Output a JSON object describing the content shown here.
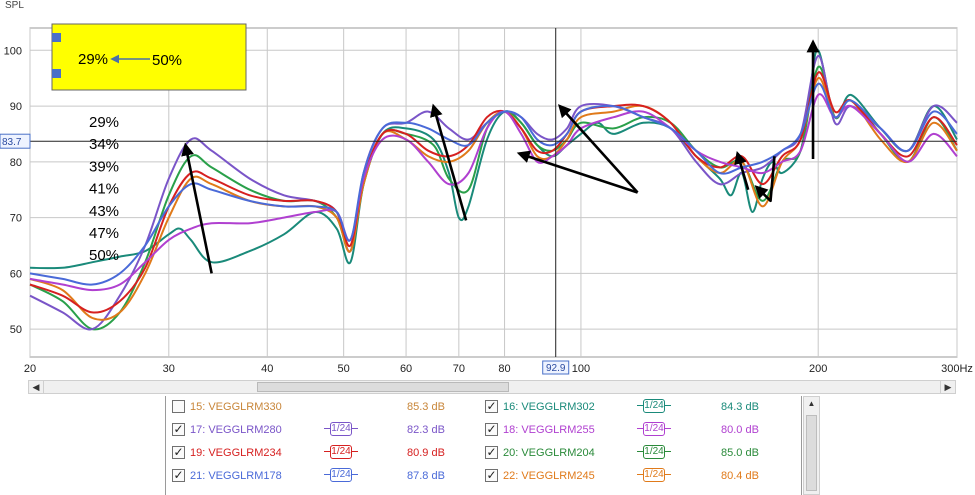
{
  "chart_data": {
    "type": "line",
    "ylabel": "SPL",
    "xaxis": {
      "scale": "log",
      "range": [
        20,
        300
      ],
      "ticks": [
        20,
        30,
        40,
        50,
        60,
        70,
        80,
        100,
        200,
        300
      ],
      "tick_labels": [
        "20",
        "30",
        "40",
        "50",
        "60",
        "70",
        "80",
        "100",
        "200",
        "300Hz"
      ]
    },
    "yaxis": {
      "range": [
        45,
        104
      ],
      "ticks": [
        50,
        60,
        70,
        80,
        90,
        100
      ],
      "tick_labels": [
        "50",
        "60",
        "70",
        "80",
        "90",
        "100"
      ]
    },
    "cursor": {
      "x_label": "92.9",
      "y_label": "83.7",
      "x": 92.9,
      "y": 83.7
    },
    "grid": true,
    "series": [
      {
        "color": "#1a8a7a",
        "x": [
          20,
          22,
          24,
          26,
          28,
          30,
          31,
          32,
          34,
          38,
          42,
          46,
          49,
          51,
          53,
          56,
          60,
          65,
          68,
          70,
          72,
          76,
          80,
          84,
          88,
          92,
          96,
          100,
          105,
          110,
          120,
          130,
          140,
          150,
          155,
          160,
          165,
          170,
          175,
          180,
          190,
          195,
          200,
          210,
          220,
          240,
          260,
          280,
          300
        ],
        "y": [
          61,
          61,
          62,
          63,
          64,
          67,
          68,
          66,
          62,
          64,
          67,
          71,
          68,
          62,
          76,
          85,
          86,
          84,
          78,
          70,
          72,
          84,
          89,
          87,
          83,
          81,
          83,
          85,
          87,
          85,
          87,
          86,
          81,
          77,
          74,
          78,
          71,
          77,
          80,
          78,
          82,
          92,
          100,
          88,
          92,
          86,
          82,
          90,
          84
        ]
      },
      {
        "color": "#2aa04a",
        "x": [
          20,
          22,
          24,
          26,
          28,
          30,
          32,
          34,
          38,
          42,
          46,
          49,
          51,
          53,
          56,
          60,
          65,
          68,
          72,
          76,
          80,
          84,
          88,
          92,
          96,
          100,
          110,
          120,
          130,
          140,
          150,
          160,
          170,
          180,
          190,
          200,
          210,
          220,
          240,
          260,
          280,
          300
        ],
        "y": [
          58,
          55,
          50,
          53,
          62,
          74,
          81,
          79,
          75,
          73,
          73,
          70,
          64,
          76,
          85,
          85,
          83,
          77,
          75,
          86,
          89,
          87,
          83,
          82,
          84,
          87,
          86,
          88,
          87,
          82,
          79,
          80,
          73,
          80,
          82,
          97,
          88,
          91,
          85,
          80,
          88,
          82
        ]
      },
      {
        "color": "#7a55c8",
        "x": [
          20,
          22,
          24,
          26,
          28,
          30,
          32,
          34,
          38,
          42,
          46,
          49,
          51,
          53,
          56,
          60,
          64,
          68,
          72,
          76,
          80,
          84,
          88,
          92,
          96,
          100,
          110,
          120,
          130,
          140,
          150,
          160,
          170,
          180,
          190,
          200,
          210,
          220,
          240,
          260,
          280,
          300
        ],
        "y": [
          56,
          53,
          50,
          56,
          65,
          77,
          84,
          82,
          77,
          74,
          73,
          71,
          64,
          78,
          86,
          87,
          89,
          86,
          84,
          87,
          89,
          88,
          85,
          84,
          86,
          90,
          90,
          88,
          86,
          80,
          76,
          78,
          79,
          82,
          85,
          99,
          87,
          90,
          86,
          82,
          90,
          87
        ]
      },
      {
        "color": "#e07a1a",
        "x": [
          20,
          22,
          24,
          26,
          28,
          30,
          32,
          34,
          38,
          42,
          46,
          49,
          51,
          53,
          56,
          60,
          64,
          68,
          72,
          76,
          80,
          84,
          88,
          92,
          96,
          100,
          110,
          120,
          130,
          140,
          150,
          160,
          170,
          180,
          190,
          200,
          210,
          220,
          240,
          260,
          280,
          300
        ],
        "y": [
          59,
          57,
          52,
          53,
          60,
          70,
          77,
          76,
          73,
          72,
          72,
          70,
          64,
          76,
          85,
          84,
          81,
          80,
          82,
          87,
          89,
          86,
          81,
          81,
          84,
          88,
          89,
          90,
          87,
          81,
          78,
          80,
          72,
          80,
          84,
          95,
          88,
          91,
          84,
          80,
          87,
          82
        ]
      },
      {
        "color": "#d62020",
        "x": [
          20,
          22,
          24,
          26,
          28,
          30,
          32,
          34,
          38,
          42,
          46,
          49,
          51,
          53,
          56,
          60,
          64,
          68,
          72,
          76,
          80,
          84,
          88,
          92,
          96,
          100,
          110,
          120,
          130,
          140,
          150,
          160,
          170,
          180,
          190,
          200,
          210,
          220,
          240,
          260,
          280,
          300
        ],
        "y": [
          58,
          56,
          53,
          55,
          61,
          72,
          78,
          77,
          74,
          73,
          73,
          71,
          65,
          77,
          85,
          85,
          82,
          81,
          83,
          88,
          89,
          86,
          82,
          82,
          85,
          89,
          90,
          90,
          87,
          81,
          79,
          81,
          76,
          81,
          84,
          96,
          89,
          91,
          85,
          81,
          88,
          83
        ]
      },
      {
        "color": "#b040d0",
        "x": [
          20,
          22,
          24,
          26,
          28,
          30,
          32,
          34,
          38,
          42,
          46,
          49,
          51,
          53,
          56,
          60,
          64,
          68,
          72,
          76,
          80,
          84,
          88,
          92,
          96,
          100,
          110,
          120,
          130,
          140,
          150,
          160,
          170,
          180,
          190,
          200,
          210,
          220,
          240,
          260,
          280,
          300
        ],
        "y": [
          59,
          58,
          57,
          58,
          62,
          66,
          68,
          69,
          69,
          70,
          71,
          71,
          66,
          77,
          84,
          84,
          80,
          76,
          78,
          86,
          89,
          85,
          80,
          81,
          83,
          86,
          88,
          89,
          86,
          82,
          80,
          79,
          78,
          80,
          82,
          92,
          88,
          90,
          85,
          80,
          85,
          81
        ]
      },
      {
        "color": "#4a6ad8",
        "x": [
          20,
          22,
          24,
          26,
          28,
          30,
          32,
          34,
          38,
          42,
          46,
          49,
          51,
          53,
          56,
          60,
          64,
          68,
          72,
          76,
          80,
          84,
          88,
          92,
          96,
          100,
          110,
          120,
          130,
          140,
          150,
          160,
          170,
          180,
          190,
          200,
          210,
          220,
          240,
          260,
          280,
          300
        ],
        "y": [
          60,
          59,
          58,
          60,
          65,
          72,
          76,
          75,
          73,
          72,
          72,
          71,
          66,
          78,
          86,
          87,
          86,
          84,
          83,
          87,
          89,
          88,
          84,
          83,
          85,
          89,
          90,
          88,
          86,
          82,
          78,
          79,
          80,
          82,
          85,
          94,
          88,
          91,
          86,
          82,
          89,
          85
        ]
      }
    ],
    "annotations": {
      "inset_box": {
        "from_label": "29%",
        "to_label": "50%"
      },
      "percent_list": [
        "29%",
        "34%",
        "39%",
        "41%",
        "43%",
        "47%",
        "50%"
      ],
      "arrows": [
        {
          "from": [
            34,
            60
          ],
          "to": [
            31.5,
            83
          ]
        },
        {
          "from": [
            71.5,
            69.5
          ],
          "to": [
            65,
            90
          ]
        },
        {
          "from": [
            118,
            74.5
          ],
          "to": [
            94,
            90
          ]
        },
        {
          "from": [
            118,
            74.5
          ],
          "to": [
            83.5,
            81.5
          ]
        },
        {
          "from": [
            163,
            75
          ],
          "to": [
            158,
            81.5
          ]
        },
        {
          "from": [
            176,
            81
          ],
          "to": [
            174,
            73
          ],
          "to2": [
            167,
            75.5
          ]
        },
        {
          "from": [
            197,
            80.5
          ],
          "to": [
            197,
            101.5
          ]
        }
      ]
    }
  },
  "legend": {
    "rows": [
      [
        {
          "checked": false,
          "name": "15: VEGGLRM330",
          "color": "#c8863a",
          "smoothing": "",
          "value": "85.3 dB"
        },
        {
          "checked": true,
          "name": "16: VEGGLRM302",
          "color": "#1a8a7a",
          "smoothing": "1/24",
          "value": "84.3 dB"
        }
      ],
      [
        {
          "checked": true,
          "name": "17: VEGGLRM280",
          "color": "#7a55c8",
          "smoothing": "1/24",
          "value": "82.3 dB"
        },
        {
          "checked": true,
          "name": "18: VEGGLRM255",
          "color": "#b040d0",
          "smoothing": "1/24",
          "value": "80.0 dB"
        }
      ],
      [
        {
          "checked": true,
          "name": "19: VEGGLRM234",
          "color": "#d62020",
          "smoothing": "1/24",
          "value": "80.9 dB"
        },
        {
          "checked": true,
          "name": "20: VEGGLRM204",
          "color": "#2a8a3a",
          "smoothing": "1/24",
          "value": "85.0 dB"
        }
      ],
      [
        {
          "checked": true,
          "name": "21: VEGGLRM178",
          "color": "#4a6ad8",
          "smoothing": "1/24",
          "value": "87.8 dB"
        },
        {
          "checked": true,
          "name": "22: VEGGLRM245",
          "color": "#e07a1a",
          "smoothing": "1/24",
          "value": "80.4 dB"
        }
      ]
    ]
  }
}
